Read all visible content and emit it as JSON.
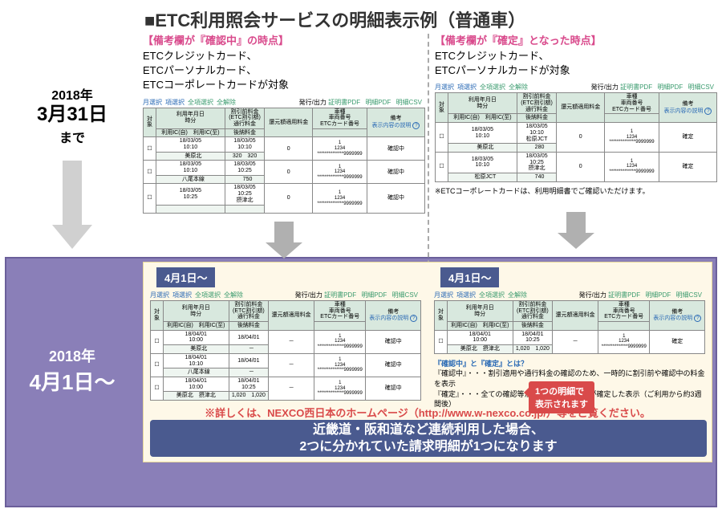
{
  "title": "■ETC利用照会サービスの明細表示例（普通車）",
  "before": {
    "year": "2018年",
    "month_day": "3月31日",
    "suffix": "まで"
  },
  "after": {
    "year": "2018年",
    "month_day": "4月1日～"
  },
  "left": {
    "subtitle": "【備考欄が『確認中』の時点】",
    "cards": "ETCクレジットカード、\nETCパーソナルカード、\nETCコーポレートカードが対象"
  },
  "right": {
    "subtitle": "【備考欄が『確定』となった時点】",
    "cards": "ETCクレジットカード、\nETCパーソナルカードが対象",
    "corp_note": "※ETCコーポレートカードは、利用明細書でご確認いただけます。"
  },
  "toolbar": {
    "a": "月選択",
    "b": "項選択",
    "c": "全項選択",
    "d": "全解除",
    "e": "発行/出力",
    "f": "証明書PDF",
    "g": "明細PDF",
    "h": "明細CSV"
  },
  "headers": {
    "r1": [
      "対象",
      "利用年月日\n時分",
      "割引前料金\n(ETC割引額)\n通行料金",
      "還元額適用料金",
      "車種\n車両番号\nETCカード番号",
      "備考"
    ],
    "r2": [
      "",
      "利用IC(自)",
      "利用IC(至)",
      "",
      "後納料金",
      "",
      ""
    ],
    "bikou_link": "表示内容の説明"
  },
  "tbl_left_before": [
    {
      "dt": "18/03/05\n10:10",
      "ic1": "",
      "ic2": "美原北",
      "p1": "18/03/05\n10:10",
      "p2": "320",
      "g": "0",
      "gg": "320",
      "car": "1\n1234\n**************9999999",
      "bk": "確認中"
    },
    {
      "dt": "18/03/05\n10:10",
      "ic1": "",
      "ic2": "八尾本線",
      "p1": "18/03/05\n10:25",
      "p2": "",
      "g": "0",
      "gg": "750",
      "car": "1\n1234\n**************9999999",
      "bk": "確認中"
    },
    {
      "dt": "18/03/05\n10:25",
      "ic1": "",
      "ic2": "",
      "p1": "18/03/05\n10:25\n摂津北",
      "p2": "",
      "g": "0",
      "gg": "",
      "car": "1\n1234\n**************9999999",
      "bk": "確認中"
    }
  ],
  "tbl_right_before": [
    {
      "dt": "18/03/05\n10:10",
      "ic1": "",
      "ic2": "美原北",
      "p1": "18/03/05\n10:10\n松原JCT",
      "p2": "",
      "g": "0",
      "gg": "280",
      "car": "1\n1234\n**************9999999",
      "bk": "確定"
    },
    {
      "dt": "18/03/05\n10:10",
      "ic1": "",
      "ic2": "松原JCT",
      "p1": "18/03/05\n10:25\n摂津北",
      "p2": "",
      "g": "0",
      "gg": "740",
      "car": "1\n1234\n**************9999999",
      "bk": "確定"
    }
  ],
  "date_tag": "4月1日～",
  "tbl_left_after": [
    {
      "dt": "18/04/01\n10:00",
      "ic1": "",
      "ic2": "美原北",
      "p1": "18/04/01\n",
      "p2": "",
      "g": "－",
      "gg": "－",
      "car": "1\n1234\n**************9999999",
      "bk": "確認中"
    },
    {
      "dt": "18/04/01\n10:10",
      "ic1": "",
      "ic2": "八尾本線",
      "p1": "18/04/01\n",
      "p2": "",
      "g": "－",
      "gg": "－",
      "car": "1\n1234\n**************9999999",
      "bk": "確認中"
    },
    {
      "dt": "18/04/01\n10:00",
      "ic1": "美原北",
      "ic2": "摂津北",
      "p1": "18/04/01\n10:25",
      "p2": "1,020",
      "g": "－",
      "gg": "1,020",
      "car": "1\n1234\n**************9999999",
      "bk": "確認中"
    }
  ],
  "tbl_right_after": [
    {
      "dt": "18/04/01\n10:00",
      "ic1": "美原北",
      "ic2": "摂津北",
      "p1": "18/04/01\n10:25",
      "p2": "1,020",
      "g": "－",
      "gg": "1,020",
      "car": "1\n1234\n**************9999999",
      "bk": "確定"
    }
  ],
  "callout": "1つの明細で\n表示されます",
  "explain": {
    "title": "『確認中』と『確定』とは？",
    "l1": "『確認中』・・・割引適用や通行料金の確認のため、一時的に割引前や確認中の料金を表示",
    "l2": "『確定』・・・全ての確認等が終了し、通行料金が確定した表示（ご利用から約3週間後）"
  },
  "footer": "※詳しくは、NEXCO西日本のホームページ（http://www.w-nexco.co.jp/）等をご覧ください。",
  "banner": "近畿道・阪和道など連続利用した場合、\n2つに分かれていた請求明細が1つになります"
}
